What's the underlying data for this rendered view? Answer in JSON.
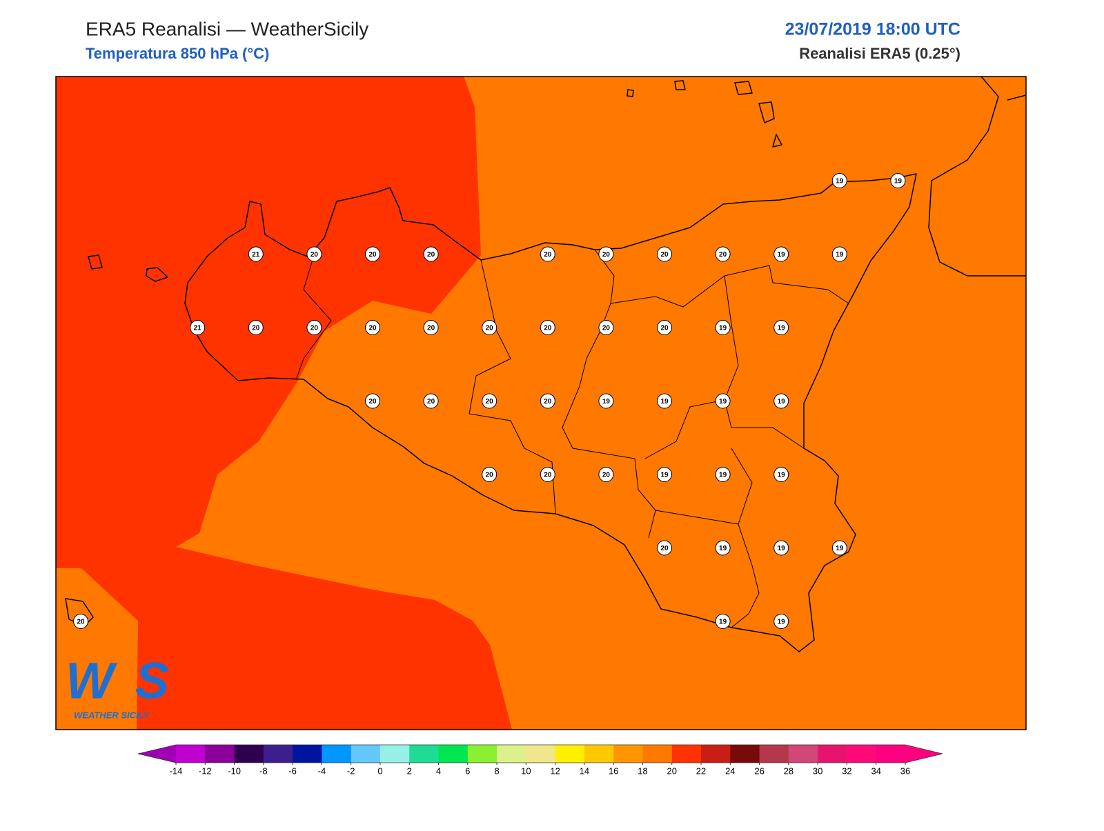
{
  "header": {
    "title": "ERA5 Reanalisi — WeatherSicily",
    "subtitle": "Temperatura 850 hPa (°C)",
    "datetime": "23/07/2019 18:00 UTC",
    "source": "Reanalisi ERA5 (0.25°)"
  },
  "logo": {
    "mark": "WS",
    "name": "WEATHER SICILY"
  },
  "map": {
    "background_color": "#ff7800",
    "warm_color": "#ff3300",
    "coast_color": "#000000"
  },
  "stations": [
    [
      null,
      null,
      null,
      null,
      null,
      null,
      null,
      null,
      null,
      null,
      null,
      null,
      null,
      19,
      19
    ],
    [
      null,
      null,
      null,
      21,
      20,
      20,
      20,
      null,
      20,
      20,
      20,
      20,
      19,
      19,
      null
    ],
    [
      null,
      null,
      21,
      20,
      20,
      20,
      20,
      20,
      20,
      20,
      20,
      19,
      19,
      null,
      null
    ],
    [
      null,
      null,
      null,
      null,
      null,
      20,
      20,
      20,
      20,
      19,
      19,
      19,
      19,
      null,
      null
    ],
    [
      null,
      null,
      null,
      null,
      null,
      null,
      null,
      20,
      20,
      20,
      19,
      19,
      19,
      null,
      null
    ],
    [
      null,
      null,
      null,
      null,
      null,
      null,
      null,
      null,
      null,
      null,
      20,
      19,
      19,
      19,
      null
    ],
    [
      20,
      null,
      null,
      null,
      null,
      null,
      null,
      null,
      null,
      null,
      null,
      19,
      19,
      null,
      null
    ]
  ],
  "colorbar": {
    "ticks": [
      -14,
      -12,
      -10,
      -8,
      -6,
      -4,
      -2,
      0,
      2,
      4,
      6,
      8,
      10,
      12,
      14,
      16,
      18,
      20,
      22,
      24,
      26,
      28,
      30,
      32,
      34,
      36
    ],
    "colors": [
      "#c000d0",
      "#8a0099",
      "#300050",
      "#3c1e8c",
      "#0014a0",
      "#0096ff",
      "#64c8ff",
      "#96f0e6",
      "#1edc96",
      "#00e650",
      "#8cf032",
      "#dcf08c",
      "#f0e68c",
      "#fff000",
      "#ffc800",
      "#ff9600",
      "#ff7800",
      "#ff3200",
      "#c81e14",
      "#780a0a",
      "#b4374b",
      "#d24678",
      "#e6146e",
      "#ff0a78",
      "#ff0080"
    ],
    "extend_colors": [
      "#a000b4",
      "#ff0080"
    ]
  }
}
